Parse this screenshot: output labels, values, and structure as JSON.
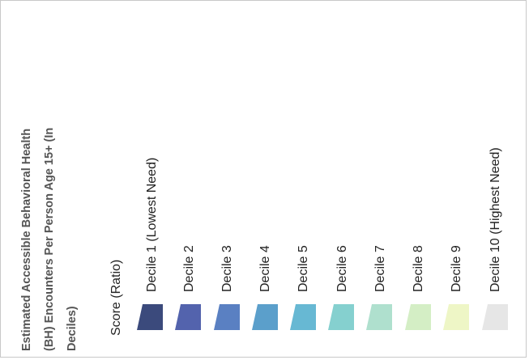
{
  "legend": {
    "title_lines": [
      "Estimated Accessible Behavioral Health",
      "(BH) Encounters Per Person Age 15+ (In",
      "Deciles)"
    ],
    "subtitle": "Score (Ratio)",
    "items": [
      {
        "label": "Decile 1 (Lowest Need)",
        "color": "#3b4a7c"
      },
      {
        "label": "Decile 2",
        "color": "#5363ad"
      },
      {
        "label": "Decile 3",
        "color": "#5a80c2"
      },
      {
        "label": "Decile 4",
        "color": "#5b9fcb"
      },
      {
        "label": "Decile 5",
        "color": "#67b8d3"
      },
      {
        "label": "Decile 6",
        "color": "#85d0cf"
      },
      {
        "label": "Decile 7",
        "color": "#afe0ce"
      },
      {
        "label": "Decile 8",
        "color": "#d4eec5"
      },
      {
        "label": "Decile 9",
        "color": "#eef6c6"
      },
      {
        "label": "Decile 10 (Highest Need)",
        "color": "#e6e6e6"
      }
    ]
  }
}
